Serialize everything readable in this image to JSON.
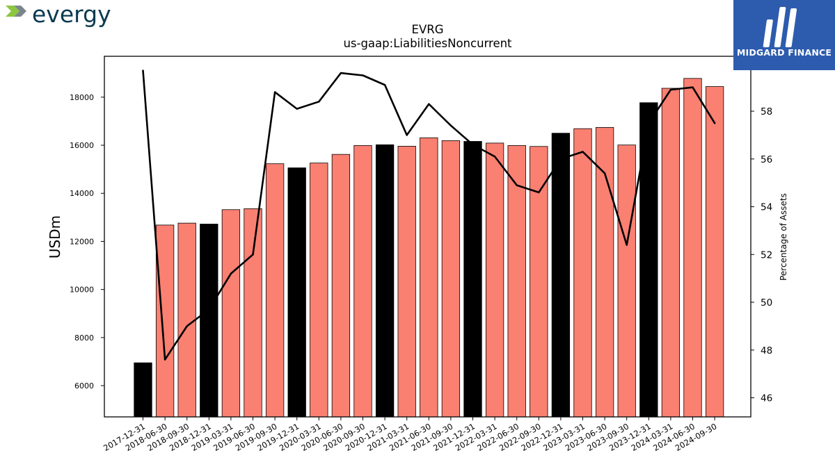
{
  "branding": {
    "left_logo_text": "evergy",
    "right_logo_text": "MIDGARD FINANCE"
  },
  "colors": {
    "bar_default": "#fa8072",
    "bar_highlight": "#000000",
    "line": "#000000",
    "logo_dark": "#0c3a4f",
    "logo_green": "#8dc63f",
    "logo_gray": "#7a868c",
    "logo_right_bg": "#2d5cae"
  },
  "chart_data": {
    "type": "bar",
    "title": "EVRG",
    "subtitle": "us-gaap:LiabilitiesNoncurrent",
    "ylabel": "USDm",
    "y2label": "Percentage of Assets",
    "ylim": [
      4700,
      19700
    ],
    "y2lim": [
      45.2,
      60.3
    ],
    "yticks": [
      6000,
      8000,
      10000,
      12000,
      14000,
      16000,
      18000
    ],
    "y2ticks": [
      46,
      48,
      50,
      52,
      54,
      56,
      58
    ],
    "grid": false,
    "categories": [
      "2017-12-31",
      "2018-06-30",
      "2018-09-30",
      "2018-12-31",
      "2019-03-31",
      "2019-06-30",
      "2019-09-30",
      "2019-12-31",
      "2020-03-31",
      "2020-06-30",
      "2020-09-30",
      "2020-12-31",
      "2021-03-31",
      "2021-06-30",
      "2021-09-30",
      "2021-12-31",
      "2022-03-31",
      "2022-06-30",
      "2022-09-30",
      "2022-12-31",
      "2023-03-31",
      "2023-06-30",
      "2023-09-30",
      "2023-12-31",
      "2024-03-31",
      "2024-06-30",
      "2024-09-30"
    ],
    "values": [
      6950,
      12680,
      12760,
      12720,
      13320,
      13360,
      15230,
      15060,
      15260,
      15620,
      15990,
      16020,
      15960,
      16310,
      16190,
      16160,
      16090,
      15990,
      15950,
      16500,
      16690,
      16740,
      16010,
      17770,
      18370,
      18780,
      18440
    ],
    "highlight": [
      true,
      false,
      false,
      true,
      false,
      false,
      false,
      true,
      false,
      false,
      false,
      true,
      false,
      false,
      false,
      true,
      false,
      false,
      false,
      true,
      false,
      false,
      false,
      true,
      false,
      false,
      false
    ],
    "series": [
      {
        "axis": "right",
        "type": "line",
        "values": [
          59.7,
          47.6,
          49.0,
          49.7,
          51.2,
          52.0,
          58.8,
          58.1,
          58.4,
          59.6,
          59.5,
          59.1,
          57.0,
          58.3,
          57.4,
          56.6,
          56.1,
          54.9,
          54.6,
          56.0,
          56.3,
          55.4,
          52.4,
          57.5,
          58.9,
          59.0,
          57.5
        ]
      }
    ]
  }
}
